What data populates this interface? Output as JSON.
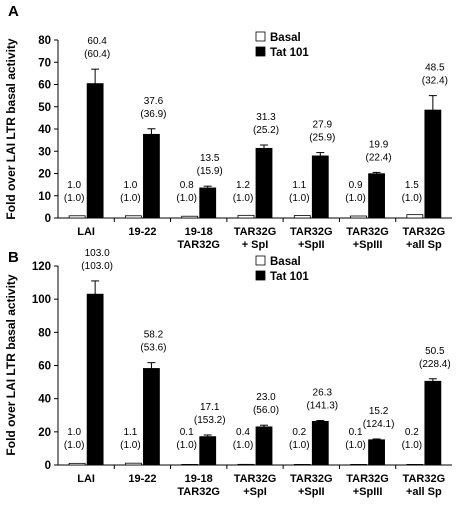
{
  "chart_data": [
    {
      "type": "bar",
      "panel": "A",
      "ylabel": "Fold over LAI LTR basal activity",
      "ylim": [
        0,
        80
      ],
      "yticks": [
        0,
        10,
        20,
        30,
        40,
        50,
        60,
        70,
        80
      ],
      "categories": [
        [
          "LAI"
        ],
        [
          "19-22"
        ],
        [
          "19-18",
          "TAR32G"
        ],
        [
          "TAR32G",
          "+ SpI"
        ],
        [
          "TAR32G",
          "+SpII"
        ],
        [
          "TAR32G",
          "+SpIII"
        ],
        [
          "TAR32G",
          "+all Sp"
        ]
      ],
      "legend_position": "top-right",
      "series": [
        {
          "name": "Basal",
          "color": "#ffffff",
          "values": [
            1.0,
            1.0,
            0.8,
            1.2,
            1.1,
            0.9,
            1.5
          ],
          "errors": [
            0,
            0,
            0,
            0,
            0,
            0,
            0
          ],
          "labels": [
            [
              "1.0",
              "(1.0)"
            ],
            [
              "1.0",
              "(1.0)"
            ],
            [
              "0.8",
              "(1.0)"
            ],
            [
              "1.2",
              "(1.0)"
            ],
            [
              "1.1",
              "(1.0)"
            ],
            [
              "0.9",
              "(1.0)"
            ],
            [
              "1.5",
              "(1.0)"
            ]
          ]
        },
        {
          "name": "Tat 101",
          "color": "#000000",
          "values": [
            60.4,
            37.6,
            13.5,
            31.3,
            27.9,
            19.9,
            48.5
          ],
          "errors": [
            6.5,
            2.5,
            0.8,
            1.5,
            1.5,
            0.6,
            6.5
          ],
          "labels": [
            [
              "60.4",
              "(60.4)"
            ],
            [
              "37.6",
              "(36.9)"
            ],
            [
              "13.5",
              "(15.9)"
            ],
            [
              "31.3",
              "(25.2)"
            ],
            [
              "27.9",
              "(25.9)"
            ],
            [
              "19.9",
              "(22.4)"
            ],
            [
              "48.5",
              "(32.4)"
            ]
          ]
        }
      ]
    },
    {
      "type": "bar",
      "panel": "B",
      "ylabel": "Fold over LAI LTR basal activity",
      "ylim": [
        0,
        120
      ],
      "yticks": [
        0,
        20,
        40,
        60,
        80,
        100,
        120
      ],
      "categories": [
        [
          "LAI"
        ],
        [
          "19-22"
        ],
        [
          "19-18",
          "TAR32G"
        ],
        [
          "TAR32G",
          "+SpI"
        ],
        [
          "TAR32G",
          "+SpII"
        ],
        [
          "TAR32G",
          "+SpIII"
        ],
        [
          "TAR32G",
          "+all Sp"
        ]
      ],
      "legend_position": "top-right",
      "series": [
        {
          "name": "Basal",
          "color": "#ffffff",
          "values": [
            1.0,
            1.1,
            0.1,
            0.4,
            0.2,
            0.1,
            0.2
          ],
          "errors": [
            0,
            0,
            0,
            0,
            0,
            0,
            0
          ],
          "labels": [
            [
              "1.0",
              "(1.0)"
            ],
            [
              "1.1",
              "(1.0)"
            ],
            [
              "0.1",
              "(1.0)"
            ],
            [
              "0.4",
              "(1.0)"
            ],
            [
              "0.2",
              "(1.0)"
            ],
            [
              "0.1",
              "(1.0)"
            ],
            [
              "0.2",
              "(1.0)"
            ]
          ]
        },
        {
          "name": "Tat 101",
          "color": "#000000",
          "values": [
            103.0,
            58.2,
            17.1,
            23.0,
            26.3,
            15.2,
            50.5
          ],
          "errors": [
            8.0,
            3.5,
            1.0,
            1.0,
            0.5,
            0.5,
            1.5
          ],
          "labels": [
            [
              "103.0",
              "(103.0)"
            ],
            [
              "58.2",
              "(53.6)"
            ],
            [
              "17.1",
              "(153.2)"
            ],
            [
              "23.0",
              "(56.0)"
            ],
            [
              "26.3",
              "(141.3)"
            ],
            [
              "15.2",
              "(124.1)"
            ],
            [
              "50.5",
              "(228.4)"
            ]
          ]
        }
      ]
    }
  ]
}
